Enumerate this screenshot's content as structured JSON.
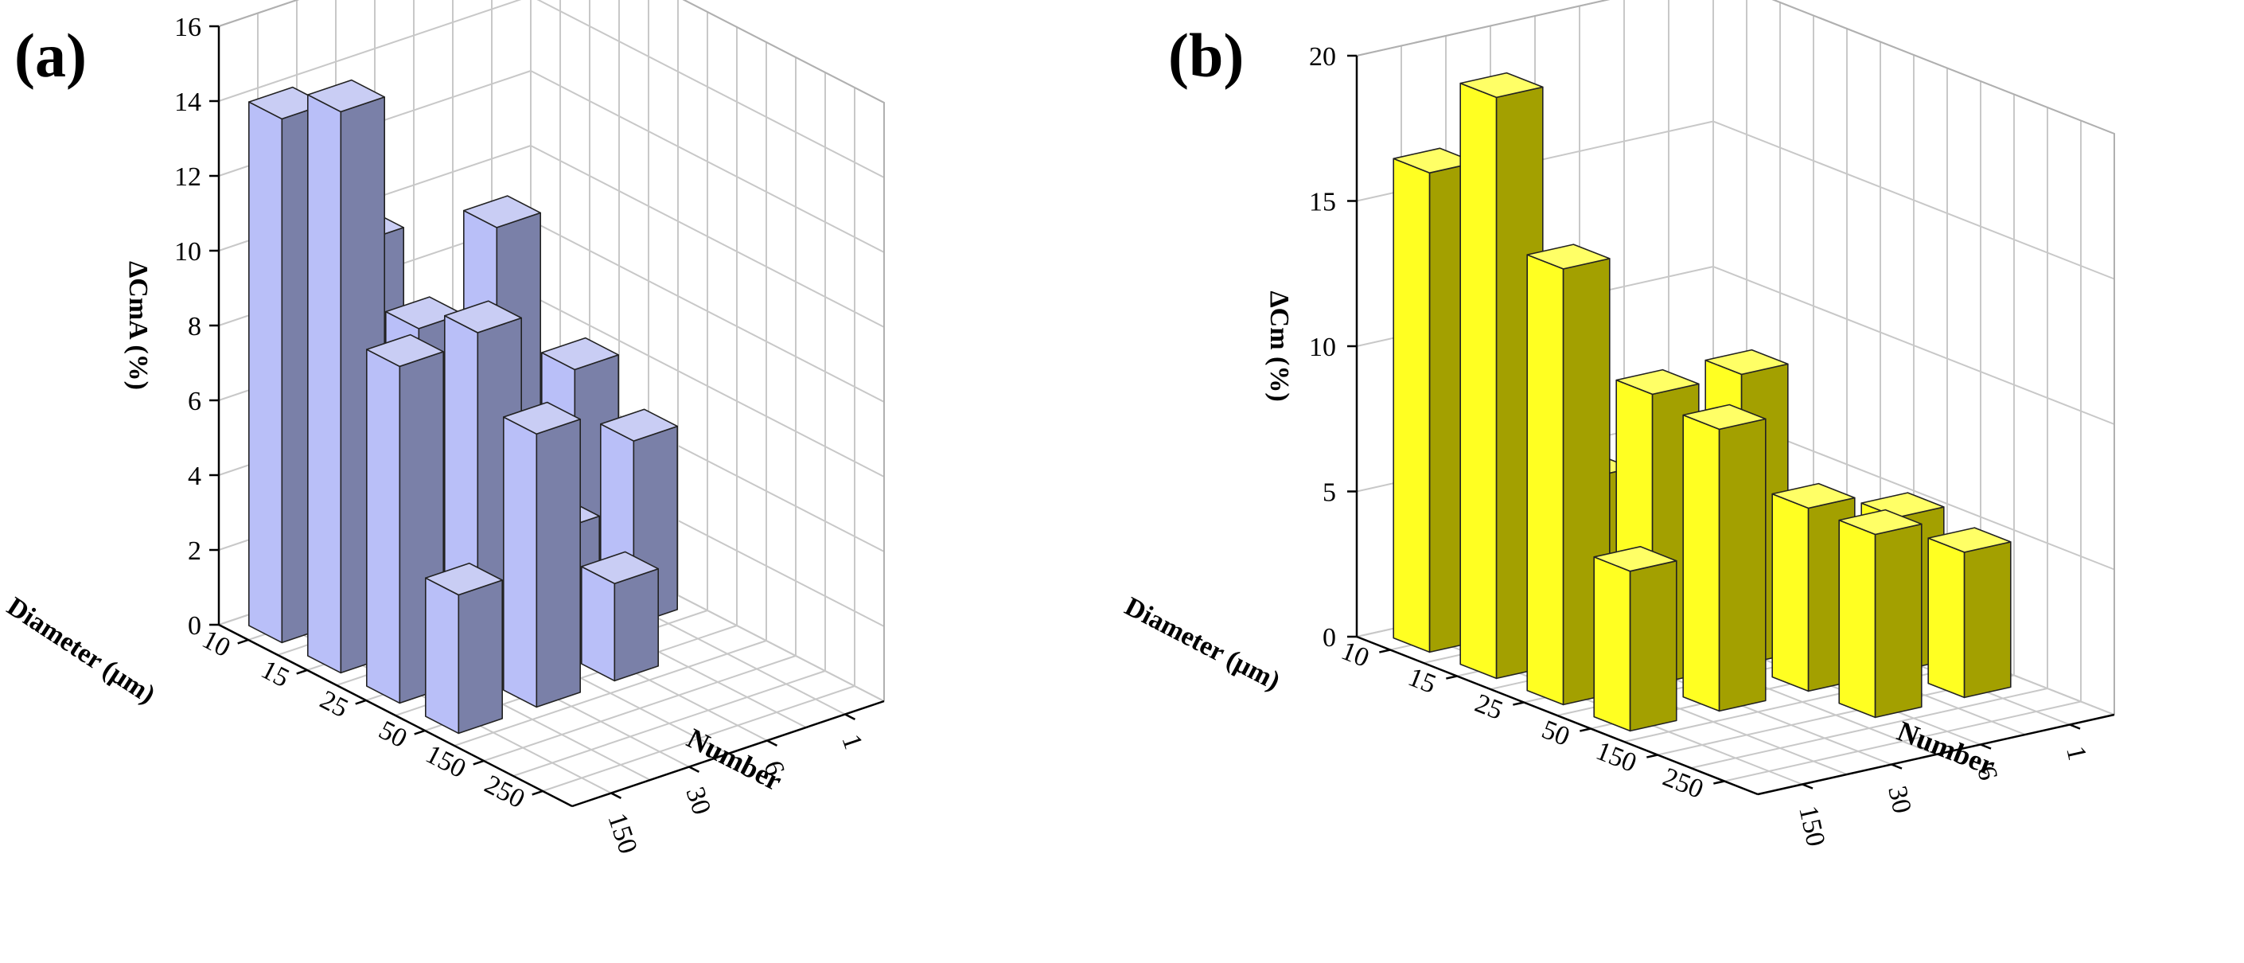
{
  "chart_data": [
    {
      "type": "bar3d",
      "panel_label": "(a)",
      "ylabel": "ΔCmA (%)",
      "xlabel": "Number",
      "zlabel": "Diameter (μm)",
      "number_ticks": [
        "150",
        "30",
        "6",
        "1"
      ],
      "diameter_ticks": [
        "10",
        "15",
        "25",
        "50",
        "150",
        "250"
      ],
      "y_ticks": [
        "0",
        "2",
        "4",
        "6",
        "8",
        "10",
        "12",
        "14",
        "16"
      ],
      "ylim": [
        0,
        16
      ],
      "colors": {
        "light": "#b9bff8",
        "dark": "#7a80a8",
        "top": "#c9cdf4"
      },
      "bars": [
        {
          "number": "150",
          "diameter": "10",
          "value": 14.0
        },
        {
          "number": "150",
          "diameter": "15",
          "value": 15.0
        },
        {
          "number": "150",
          "diameter": "25",
          "value": 9.0
        },
        {
          "number": "150",
          "diameter": "50",
          "value": 3.7
        },
        {
          "number": "30",
          "diameter": "10",
          "value": 10.0
        },
        {
          "number": "30",
          "diameter": "15",
          "value": 8.5
        },
        {
          "number": "30",
          "diameter": "25",
          "value": 9.2
        },
        {
          "number": "30",
          "diameter": "50",
          "value": 7.3
        },
        {
          "number": "6",
          "diameter": "15",
          "value": 10.5
        },
        {
          "number": "6",
          "diameter": "25",
          "value": 3.2
        },
        {
          "number": "6",
          "diameter": "50",
          "value": 2.6
        },
        {
          "number": "1",
          "diameter": "15",
          "value": 6.0
        },
        {
          "number": "1",
          "diameter": "25",
          "value": 4.9
        }
      ]
    },
    {
      "type": "bar3d",
      "panel_label": "(b)",
      "ylabel": "ΔCm (%)",
      "xlabel": "Number",
      "zlabel": "Diameter (μm)",
      "number_ticks": [
        "150",
        "30",
        "6",
        "1"
      ],
      "diameter_ticks": [
        "10",
        "15",
        "25",
        "50",
        "150",
        "250"
      ],
      "y_ticks": [
        "0",
        "5",
        "10",
        "15",
        "20"
      ],
      "ylim": [
        0,
        20
      ],
      "colors": {
        "light": "#ffff22",
        "dark": "#a3a000",
        "top": "#ffff66"
      },
      "bars": [
        {
          "number": "150",
          "diameter": "10",
          "value": 16.5
        },
        {
          "number": "150",
          "diameter": "15",
          "value": 20.0
        },
        {
          "number": "150",
          "diameter": "25",
          "value": 15.0
        },
        {
          "number": "150",
          "diameter": "50",
          "value": 5.5
        },
        {
          "number": "30",
          "diameter": "10",
          "value": 5.5
        },
        {
          "number": "30",
          "diameter": "15",
          "value": 6.2
        },
        {
          "number": "30",
          "diameter": "25",
          "value": 10.0
        },
        {
          "number": "30",
          "diameter": "50",
          "value": 9.7
        },
        {
          "number": "6",
          "diameter": "25",
          "value": 10.0
        },
        {
          "number": "6",
          "diameter": "50",
          "value": 6.3
        },
        {
          "number": "6",
          "diameter": "150",
          "value": 6.3
        },
        {
          "number": "1",
          "diameter": "50",
          "value": 5.3
        },
        {
          "number": "1",
          "diameter": "150",
          "value": 5.0
        }
      ]
    }
  ]
}
